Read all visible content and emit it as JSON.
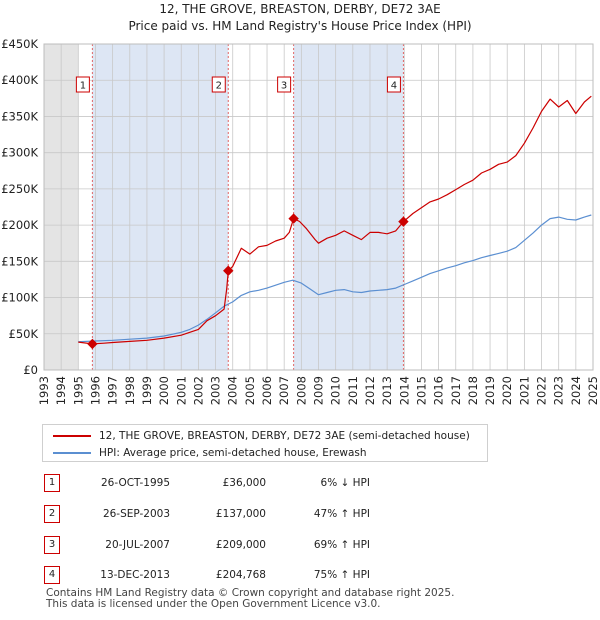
{
  "title_line1": "12, THE GROVE, BREASTON, DERBY, DE72 3AE",
  "title_line2": "Price paid vs. HM Land Registry's House Price Index (HPI)",
  "colors": {
    "property": "#cc0000",
    "hpi": "#5b8fd1",
    "shade": "#dde6f4",
    "grid": "#c8c8c8",
    "vline": "#e06666"
  },
  "chart_data": {
    "type": "line",
    "x_range": [
      1993,
      2025
    ],
    "ylim": [
      0,
      450000
    ],
    "y_ticks": [
      {
        "value": 0,
        "label": "£0"
      },
      {
        "value": 50000,
        "label": "£50K"
      },
      {
        "value": 100000,
        "label": "£100K"
      },
      {
        "value": 150000,
        "label": "£150K"
      },
      {
        "value": 200000,
        "label": "£200K"
      },
      {
        "value": 250000,
        "label": "£250K"
      },
      {
        "value": 300000,
        "label": "£300K"
      },
      {
        "value": 350000,
        "label": "£350K"
      },
      {
        "value": 400000,
        "label": "£400K"
      },
      {
        "value": 450000,
        "label": "£450K"
      }
    ],
    "x_ticks": [
      "1993",
      "1994",
      "1995",
      "1996",
      "1997",
      "1998",
      "1999",
      "2000",
      "2001",
      "2002",
      "2003",
      "2004",
      "2005",
      "2006",
      "2007",
      "2008",
      "2009",
      "2010",
      "2011",
      "2012",
      "2013",
      "2014",
      "2015",
      "2016",
      "2017",
      "2018",
      "2019",
      "2020",
      "2021",
      "2022",
      "2023",
      "2024",
      "2025"
    ],
    "series": [
      {
        "name": "12, THE GROVE, BREASTON, DERBY, DE72 3AE (semi-detached house)",
        "color": "#cc0000",
        "points": [
          [
            1995.0,
            38500
          ],
          [
            1995.82,
            36000
          ],
          [
            1996.5,
            37000
          ],
          [
            1997.0,
            38000
          ],
          [
            1998.0,
            39500
          ],
          [
            1999.0,
            41000
          ],
          [
            2000.0,
            44000
          ],
          [
            2001.0,
            48000
          ],
          [
            2001.5,
            52000
          ],
          [
            2002.0,
            56000
          ],
          [
            2002.5,
            68000
          ],
          [
            2003.0,
            75000
          ],
          [
            2003.5,
            84000
          ],
          [
            2003.65,
            112000
          ],
          [
            2003.74,
            137000
          ],
          [
            2004.0,
            143000
          ],
          [
            2004.5,
            168000
          ],
          [
            2005.0,
            160000
          ],
          [
            2005.5,
            170000
          ],
          [
            2006.0,
            172000
          ],
          [
            2006.5,
            178000
          ],
          [
            2007.0,
            182000
          ],
          [
            2007.3,
            190000
          ],
          [
            2007.55,
            209000
          ],
          [
            2007.9,
            205000
          ],
          [
            2008.3,
            195000
          ],
          [
            2008.8,
            180000
          ],
          [
            2009.0,
            175000
          ],
          [
            2009.5,
            182000
          ],
          [
            2010.0,
            186000
          ],
          [
            2010.5,
            192000
          ],
          [
            2011.0,
            186000
          ],
          [
            2011.5,
            180000
          ],
          [
            2012.0,
            190000
          ],
          [
            2012.5,
            190000
          ],
          [
            2013.0,
            188000
          ],
          [
            2013.5,
            192000
          ],
          [
            2013.95,
            204768
          ],
          [
            2014.5,
            216000
          ],
          [
            2015.0,
            224000
          ],
          [
            2015.5,
            232000
          ],
          [
            2016.0,
            236000
          ],
          [
            2016.5,
            242000
          ],
          [
            2017.0,
            249000
          ],
          [
            2017.5,
            256000
          ],
          [
            2018.0,
            262000
          ],
          [
            2018.5,
            272000
          ],
          [
            2019.0,
            277000
          ],
          [
            2019.5,
            284000
          ],
          [
            2020.0,
            287000
          ],
          [
            2020.5,
            296000
          ],
          [
            2021.0,
            313000
          ],
          [
            2021.5,
            334000
          ],
          [
            2022.0,
            357000
          ],
          [
            2022.5,
            374000
          ],
          [
            2023.0,
            363000
          ],
          [
            2023.5,
            372000
          ],
          [
            2024.0,
            354000
          ],
          [
            2024.5,
            370000
          ],
          [
            2024.9,
            378000
          ]
        ]
      },
      {
        "name": "HPI: Average price, semi-detached house, Erewash",
        "color": "#5b8fd1",
        "points": [
          [
            1995.0,
            39000
          ],
          [
            1996.0,
            40000
          ],
          [
            1997.0,
            41000
          ],
          [
            1998.0,
            42500
          ],
          [
            1999.0,
            44000
          ],
          [
            2000.0,
            47000
          ],
          [
            2001.0,
            52000
          ],
          [
            2001.5,
            56000
          ],
          [
            2002.0,
            62000
          ],
          [
            2002.5,
            70000
          ],
          [
            2003.0,
            79000
          ],
          [
            2003.5,
            88000
          ],
          [
            2004.0,
            94000
          ],
          [
            2004.5,
            103000
          ],
          [
            2005.0,
            108000
          ],
          [
            2005.5,
            110000
          ],
          [
            2006.0,
            113000
          ],
          [
            2006.5,
            117000
          ],
          [
            2007.0,
            121000
          ],
          [
            2007.5,
            124000
          ],
          [
            2008.0,
            120000
          ],
          [
            2008.5,
            112000
          ],
          [
            2009.0,
            104000
          ],
          [
            2009.5,
            107000
          ],
          [
            2010.0,
            110000
          ],
          [
            2010.5,
            111000
          ],
          [
            2011.0,
            108000
          ],
          [
            2011.5,
            107000
          ],
          [
            2012.0,
            109000
          ],
          [
            2012.5,
            110000
          ],
          [
            2013.0,
            111000
          ],
          [
            2013.5,
            113000
          ],
          [
            2014.0,
            118000
          ],
          [
            2014.5,
            123000
          ],
          [
            2015.0,
            128000
          ],
          [
            2015.5,
            133000
          ],
          [
            2016.0,
            137000
          ],
          [
            2016.5,
            141000
          ],
          [
            2017.0,
            144000
          ],
          [
            2017.5,
            148000
          ],
          [
            2018.0,
            151000
          ],
          [
            2018.5,
            155000
          ],
          [
            2019.0,
            158000
          ],
          [
            2019.5,
            161000
          ],
          [
            2020.0,
            164000
          ],
          [
            2020.5,
            169000
          ],
          [
            2021.0,
            179000
          ],
          [
            2021.5,
            189000
          ],
          [
            2022.0,
            200000
          ],
          [
            2022.5,
            209000
          ],
          [
            2023.0,
            211000
          ],
          [
            2023.5,
            208000
          ],
          [
            2024.0,
            207000
          ],
          [
            2024.5,
            211000
          ],
          [
            2024.9,
            214000
          ]
        ]
      }
    ],
    "sales": [
      {
        "label": "1",
        "x": 1995.82,
        "y": 36000
      },
      {
        "label": "2",
        "x": 2003.74,
        "y": 137000
      },
      {
        "label": "3",
        "x": 2007.55,
        "y": 209000
      },
      {
        "label": "4",
        "x": 2013.95,
        "y": 204768
      }
    ]
  },
  "legend": {
    "property": "12, THE GROVE, BREASTON, DERBY, DE72 3AE (semi-detached house)",
    "hpi": "HPI: Average price, semi-detached house, Erewash"
  },
  "transactions": [
    {
      "num": "1",
      "date": "26-OCT-1995",
      "price": "£36,000",
      "hpi": "6% ↓ HPI"
    },
    {
      "num": "2",
      "date": "26-SEP-2003",
      "price": "£137,000",
      "hpi": "47% ↑ HPI"
    },
    {
      "num": "3",
      "date": "20-JUL-2007",
      "price": "£209,000",
      "hpi": "69% ↑ HPI"
    },
    {
      "num": "4",
      "date": "13-DEC-2013",
      "price": "£204,768",
      "hpi": "75% ↑ HPI"
    }
  ],
  "footer_line1": "Contains HM Land Registry data © Crown copyright and database right 2025.",
  "footer_line2": "This data is licensed under the Open Government Licence v3.0."
}
